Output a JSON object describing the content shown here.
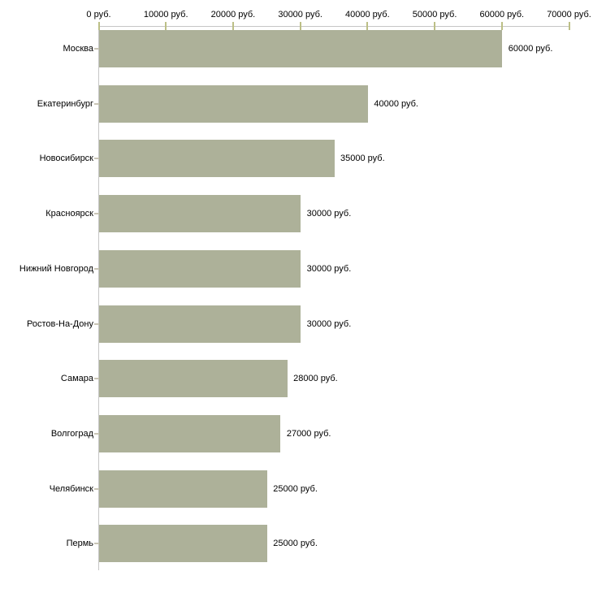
{
  "chart_data": {
    "type": "bar",
    "orientation": "horizontal",
    "title": "",
    "xlabel": "",
    "ylabel": "",
    "unit": "руб.",
    "xlim": [
      0,
      70000
    ],
    "x_tick_step": 10000,
    "x_ticks": [
      0,
      10000,
      20000,
      30000,
      40000,
      50000,
      60000,
      70000
    ],
    "x_tick_labels": [
      "0 руб.",
      "10000 руб.",
      "20000 руб.",
      "30000 руб.",
      "40000 руб.",
      "50000 руб.",
      "60000 руб.",
      "70000 руб."
    ],
    "categories": [
      "Москва",
      "Екатеринбург",
      "Новосибирск",
      "Красноярск",
      "Нижний Новгород",
      "Ростов-На-Дону",
      "Самара",
      "Волгоград",
      "Челябинск",
      "Пермь"
    ],
    "values": [
      60000,
      40000,
      35000,
      30000,
      30000,
      30000,
      28000,
      27000,
      25000,
      25000
    ],
    "value_labels": [
      "60000 руб.",
      "40000 руб.",
      "35000 руб.",
      "30000 руб.",
      "30000 руб.",
      "30000 руб.",
      "28000 руб.",
      "27000 руб.",
      "25000 руб.",
      "25000 руб."
    ],
    "legend": [],
    "grid": false,
    "colors": {
      "bar_fill": "#adb199",
      "axis_line": "#c6c6c6",
      "x_tick_mark": "#bcbf86",
      "category_tick_mark": "#c9c5b6",
      "text": "#000000",
      "background": "#ffffff"
    }
  }
}
